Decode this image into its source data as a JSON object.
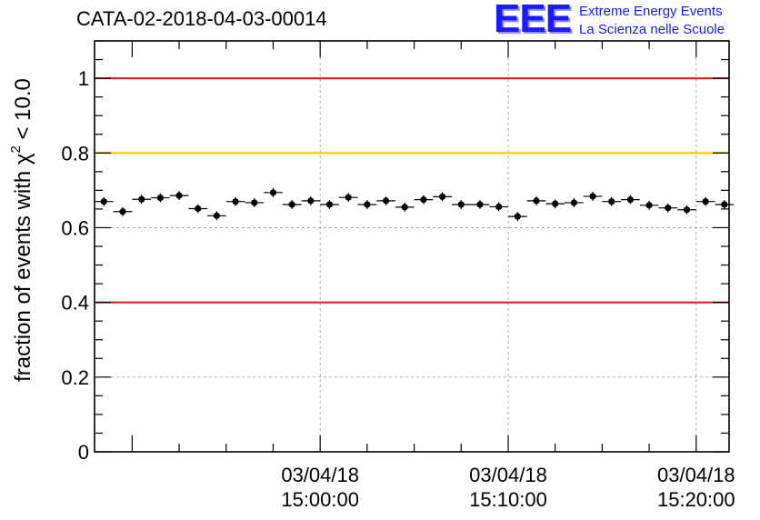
{
  "header": {
    "title": "CATA-02-2018-04-03-00014",
    "logo_mark": "EEE",
    "logo_line1": "Extreme Energy Events",
    "logo_line2": "La Scienza nelle Scuole"
  },
  "chart_data": {
    "type": "scatter",
    "title": "CATA-02-2018-04-03-00014",
    "ylabel_main": "fraction of events with χ",
    "ylabel_sup": "2",
    "ylabel_tail": " < 10.0",
    "xlabel": "",
    "x_unit": "minutes",
    "xlim": [
      -12,
      21.75
    ],
    "ylim": [
      0,
      1.1
    ],
    "y_ticks": [
      0,
      0.2,
      0.4,
      0.6,
      0.8,
      1
    ],
    "y_tick_labels": [
      "0",
      "0.2",
      "0.4",
      "0.6",
      "0.8",
      "1"
    ],
    "x_ticks": [
      {
        "x": 0,
        "date": "03/04/18",
        "time": "15:00:00"
      },
      {
        "x": 10,
        "date": "03/04/18",
        "time": "15:10:00"
      },
      {
        "x": 20,
        "date": "03/04/18",
        "time": "15:20:00"
      }
    ],
    "grid": true,
    "reference_lines": [
      {
        "y": 1.0,
        "color": "#e8141c"
      },
      {
        "y": 0.8,
        "color": "#ffc20a"
      },
      {
        "y": 0.4,
        "color": "#e8141c"
      }
    ],
    "series": [
      {
        "x_start": -11.5,
        "x_step": 1,
        "y": [
          0.67,
          0.643,
          0.676,
          0.68,
          0.686,
          0.651,
          0.632,
          0.67,
          0.667,
          0.694,
          0.662,
          0.672,
          0.662,
          0.681,
          0.662,
          0.672,
          0.655,
          0.675,
          0.683,
          0.662,
          0.662,
          0.656,
          0.63,
          0.672,
          0.664,
          0.667,
          0.684,
          0.67,
          0.675,
          0.66,
          0.653,
          0.648,
          0.67,
          0.662
        ],
        "y_err": 0.012,
        "color": "#000000"
      }
    ]
  }
}
